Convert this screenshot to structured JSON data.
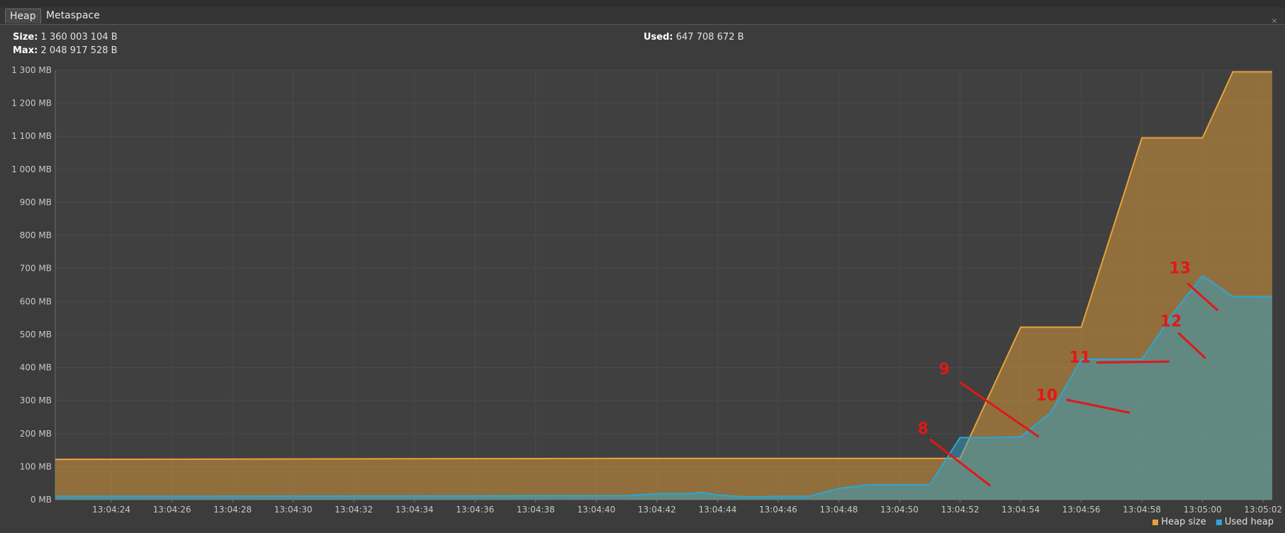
{
  "tabs": [
    {
      "label": "Heap",
      "active": true
    },
    {
      "label": "Metaspace",
      "active": false
    }
  ],
  "info": {
    "size_label": "Size:",
    "size_value": "1 360 003 104 B",
    "max_label": "Max:",
    "max_value": "2 048 917 528 B",
    "used_label": "Used:",
    "used_value": "647 708 672 B"
  },
  "legend": {
    "heap_size": "Heap size",
    "used_heap": "Used heap"
  },
  "colors": {
    "heap_size": "#e8a23a",
    "used_heap": "#2aa7d6",
    "annotation": "#e01818"
  },
  "chart_data": {
    "type": "area",
    "title": "",
    "xlabel": "",
    "ylabel": "",
    "ylim": [
      0,
      1300
    ],
    "y_ticks": [
      "0 MB",
      "100 MB",
      "200 MB",
      "300 MB",
      "400 MB",
      "500 MB",
      "600 MB",
      "700 MB",
      "800 MB",
      "900 MB",
      "1 000 MB",
      "1 100 MB",
      "1 200 MB",
      "1 300 MB"
    ],
    "x_ticks": [
      "13:04:24",
      "13:04:26",
      "13:04:28",
      "13:04:30",
      "13:04:32",
      "13:04:34",
      "13:04:36",
      "13:04:38",
      "13:04:40",
      "13:04:42",
      "13:04:44",
      "13:04:46",
      "13:04:48",
      "13:04:50",
      "13:04:52",
      "13:04:54",
      "13:04:56",
      "13:04:58",
      "13:05:00",
      "13:05:02"
    ],
    "x_range_seconds_after_130424": [
      -1.85,
      38.3
    ],
    "grid": true,
    "legend_position": "bottom-right",
    "series": [
      {
        "name": "Heap size",
        "color": "#e8a23a",
        "x": [
          -1.85,
          17.1,
          28.0,
          30.0,
          32.0,
          34.0,
          36.0,
          37.0,
          38.3
        ],
        "y": [
          122,
          125,
          125,
          522,
          522,
          1095,
          1095,
          1295,
          1295
        ]
      },
      {
        "name": "Used heap",
        "color": "#2aa7d6",
        "x": [
          -1.85,
          17.0,
          18.0,
          19.0,
          19.5,
          20.0,
          21.0,
          22.0,
          23.0,
          24.0,
          25.0,
          26.0,
          27.0,
          28.0,
          29.0,
          30.0,
          31.0,
          32.0,
          33.0,
          34.0,
          35.0,
          36.0,
          37.0,
          38.0,
          38.3
        ],
        "y": [
          10,
          12,
          18,
          18,
          22,
          14,
          8,
          10,
          10,
          34,
          45,
          45,
          45,
          188,
          188,
          190,
          265,
          425,
          425,
          425,
          560,
          678,
          615,
          615,
          615
        ]
      }
    ],
    "annotations": [
      {
        "label": "8",
        "text_at": [
          26.6,
          200
        ],
        "line_from": [
          27.0,
          183
        ],
        "line_to": [
          29.0,
          42
        ]
      },
      {
        "label": "9",
        "text_at": [
          27.3,
          380
        ],
        "line_from": [
          28.0,
          355
        ],
        "line_to": [
          30.6,
          190
        ]
      },
      {
        "label": "10",
        "text_at": [
          30.5,
          300
        ],
        "line_from": [
          31.5,
          303
        ],
        "line_to": [
          33.6,
          263
        ]
      },
      {
        "label": "11",
        "text_at": [
          31.6,
          415
        ],
        "line_from": [
          32.5,
          415
        ],
        "line_to": [
          34.9,
          418
        ]
      },
      {
        "label": "12",
        "text_at": [
          34.6,
          525
        ],
        "line_from": [
          35.2,
          505
        ],
        "line_to": [
          36.1,
          428
        ]
      },
      {
        "label": "13",
        "text_at": [
          34.9,
          685
        ],
        "line_from": [
          35.5,
          655
        ],
        "line_to": [
          36.5,
          573
        ]
      }
    ]
  }
}
